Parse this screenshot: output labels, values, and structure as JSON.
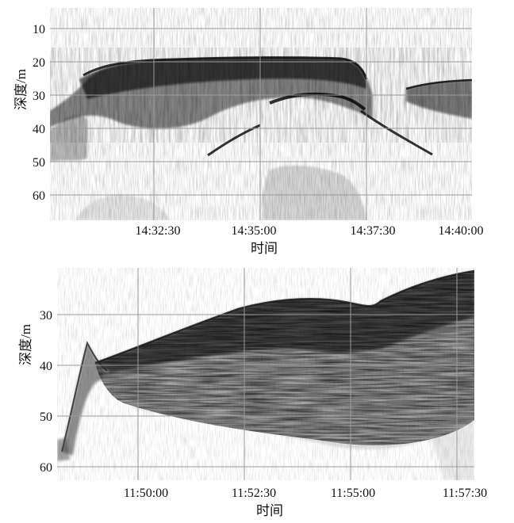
{
  "panels": [
    {
      "ylabel": "深度/m",
      "xlabel": "时间",
      "y_ticks": [
        "10",
        "20",
        "30",
        "40",
        "50",
        "60"
      ],
      "x_ticks": [
        "14:32:30",
        "14:35:00",
        "14:37:30",
        "14:40:00"
      ],
      "depth_range_m": [
        3,
        68
      ]
    },
    {
      "ylabel": "深度/m",
      "xlabel": "时间",
      "y_ticks": [
        "30",
        "40",
        "50",
        "60"
      ],
      "x_ticks": [
        "11:50:00",
        "11:52:30",
        "11:55:00",
        "11:57:30"
      ],
      "depth_range_m": [
        21,
        63
      ]
    }
  ],
  "colors": {
    "background": "#ffffff",
    "grid": "#9a9a9a",
    "ink": "#111111"
  }
}
